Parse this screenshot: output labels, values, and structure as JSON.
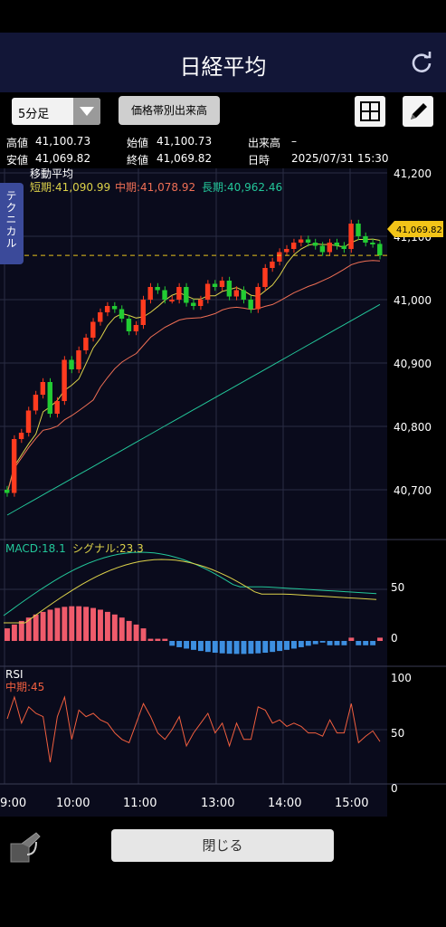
{
  "header": {
    "title": "日経平均",
    "refresh_icon": "refresh-icon"
  },
  "toolbar": {
    "period": "5分足",
    "volume_button": "価格帯別出来高",
    "grid_icon": "grid-icon",
    "pen_icon": "pen-icon"
  },
  "info": {
    "high_label": "高値",
    "high_value": "41,100.73",
    "open_label": "始値",
    "open_value": "41,100.73",
    "volume_label": "出来高",
    "volume_value": "–",
    "low_label": "安値",
    "low_value": "41,069.82",
    "close_label": "終値",
    "close_value": "41,069.82",
    "datetime_label": "日時",
    "datetime_value": "2025/07/31 15:30"
  },
  "technical_tab": "テクニカル",
  "indicators": {
    "ma_title": "移動平均",
    "ma_short": "短期:41,090.99",
    "ma_mid": "中期:41,078.92",
    "ma_long": "長期:40,962.46",
    "macd": "MACD:18.1",
    "signal": "シグナル:23.3",
    "rsi_title": "RSI",
    "rsi_mid": "中期:45"
  },
  "price_axis": [
    "41,200",
    "41,100",
    "41,000",
    "40,900",
    "40,800",
    "40,700"
  ],
  "price_tag": "41,069.82",
  "macd_axis": [
    "50",
    "0"
  ],
  "rsi_axis": [
    "100",
    "50",
    "0"
  ],
  "time_axis": [
    "9:00",
    "10:00",
    "11:00",
    "13:00",
    "14:00",
    "15:00"
  ],
  "bottom": {
    "close_button": "閉じる",
    "corner_icon": "rotate-icon"
  },
  "colors": {
    "up": "#ff3b1f",
    "down": "#22cc33",
    "ma_short": "#ddd24a",
    "ma_mid": "#ef6f55",
    "ma_long": "#23c79a",
    "macd_pos": "#ef5b6b",
    "macd_neg": "#3d8fe0",
    "rsi": "#f25f3f"
  },
  "chart_data": {
    "type": "line",
    "title": "日経平均 5分足",
    "candles_close": [
      40695,
      40780,
      40790,
      40825,
      40850,
      40870,
      40820,
      40840,
      40905,
      40890,
      40920,
      40940,
      40965,
      40980,
      40990,
      40985,
      40970,
      40950,
      40960,
      41000,
      41020,
      41015,
      41000,
      41000,
      41020,
      40995,
      40990,
      41000,
      41025,
      41020,
      41030,
      41005,
      41015,
      41000,
      40985,
      41020,
      41050,
      41060,
      41075,
      41080,
      41090,
      41095,
      41090,
      41085,
      41075,
      41090,
      41085,
      41080,
      41120,
      41100,
      41090,
      41088,
      41069.82
    ],
    "rsi_mid": 45,
    "ma_short": 41090.99,
    "ma_mid": 41078.92,
    "ma_long": 40962.46,
    "macd": 18.1,
    "signal": 23.3,
    "ylim": [
      40650,
      41200
    ]
  }
}
